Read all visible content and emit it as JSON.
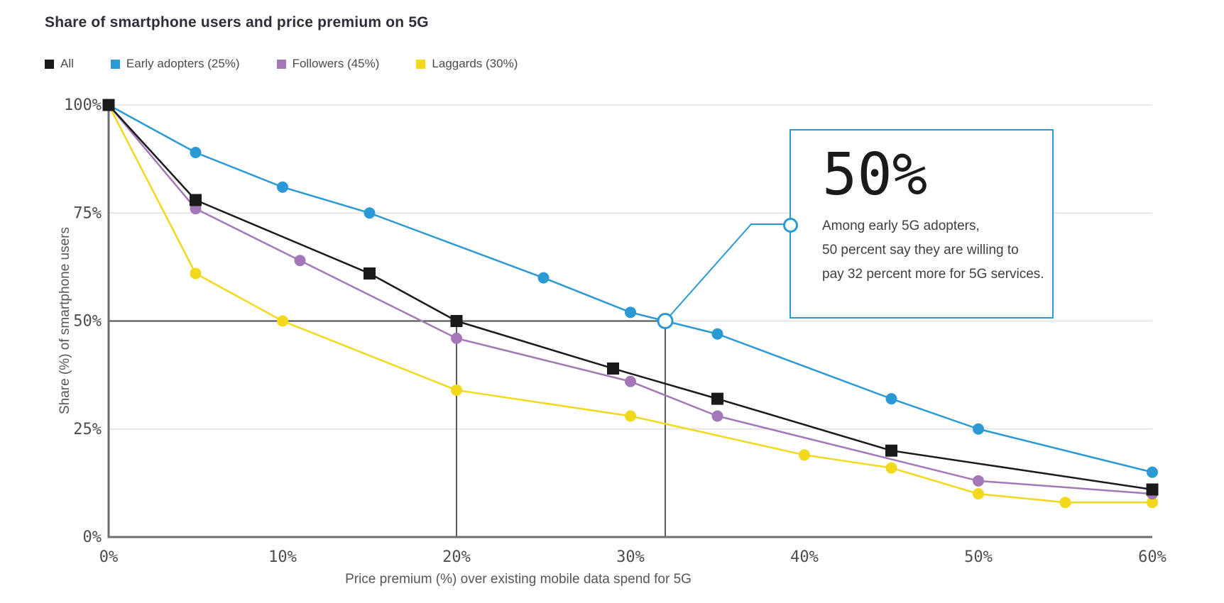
{
  "chart_data": {
    "type": "line",
    "title": "Share of smartphone users and price premium on 5G",
    "xlabel": "Price premium (%) over existing mobile data spend for 5G",
    "ylabel": "Share (%) of smartphone users",
    "xlim": [
      0,
      60
    ],
    "ylim": [
      0,
      100
    ],
    "x_tick_values": [
      0,
      10,
      20,
      30,
      40,
      50,
      60
    ],
    "x_ticks": [
      "0%",
      "10%",
      "20%",
      "30%",
      "40%",
      "50%",
      "60%"
    ],
    "y_tick_values": [
      0,
      25,
      50,
      75,
      100
    ],
    "y_ticks": [
      "0%",
      "25%",
      "50%",
      "75%",
      "100%"
    ],
    "grid_y_values": [
      25,
      50,
      75,
      100
    ],
    "legend": [
      {
        "label": "All",
        "color": "#1a1a1a"
      },
      {
        "label": "Early adopters (25%)",
        "color": "#2b99d3"
      },
      {
        "label": "Followers (45%)",
        "color": "#a478b8"
      },
      {
        "label": "Laggards (30%)",
        "color": "#f2d91c"
      }
    ],
    "series": [
      {
        "name": "Laggards (30%)",
        "color": "#f2d91c",
        "marker": "circle",
        "points": [
          [
            0,
            100
          ],
          [
            5,
            61
          ],
          [
            10,
            50
          ],
          [
            20,
            34
          ],
          [
            30,
            28
          ],
          [
            40,
            19
          ],
          [
            45,
            16
          ],
          [
            50,
            10
          ],
          [
            55,
            8
          ],
          [
            60,
            8
          ]
        ]
      },
      {
        "name": "Followers (45%)",
        "color": "#a478b8",
        "marker": "circle",
        "points": [
          [
            0,
            100
          ],
          [
            5,
            76
          ],
          [
            11,
            64
          ],
          [
            20,
            46
          ],
          [
            30,
            36
          ],
          [
            35,
            28
          ],
          [
            50,
            13
          ],
          [
            60,
            10
          ]
        ]
      },
      {
        "name": "Early adopters (25%)",
        "color": "#2b99d3",
        "marker": "circle",
        "points": [
          [
            0,
            100
          ],
          [
            5,
            89
          ],
          [
            10,
            81
          ],
          [
            15,
            75
          ],
          [
            25,
            60
          ],
          [
            30,
            52
          ],
          [
            32,
            50
          ],
          [
            35,
            47
          ],
          [
            45,
            32
          ],
          [
            50,
            25
          ],
          [
            60,
            15
          ]
        ]
      },
      {
        "name": "All",
        "color": "#1a1a1a",
        "marker": "square",
        "points": [
          [
            0,
            100
          ],
          [
            5,
            78
          ],
          [
            15,
            61
          ],
          [
            20,
            50
          ],
          [
            29,
            39
          ],
          [
            35,
            32
          ],
          [
            45,
            20
          ],
          [
            60,
            11
          ]
        ]
      }
    ],
    "reference_lines": {
      "horizontal": [
        {
          "y": 50,
          "x_from": 0,
          "x_to": 32
        }
      ],
      "vertical": [
        {
          "x": 20,
          "y_from": 0,
          "y_to": 50
        },
        {
          "x": 32,
          "y_from": 0,
          "y_to": 50
        }
      ]
    },
    "annotation": {
      "headline": "50%",
      "lines": [
        "Among early 5G adopters,",
        "50 percent say they are willing to",
        "pay 32 percent more for 5G services."
      ],
      "point": [
        32,
        50
      ],
      "highlight_series": "Early adopters (25%)"
    },
    "style": {
      "grid_color": "#dcdcdc",
      "axis_color": "#6d6e71",
      "reference_color": "#4a4a4b",
      "accent_blue": "#2b99d3",
      "tick_text_color": "#4d4d4f"
    },
    "legend_position": "top-left",
    "grid": "horizontal-only"
  }
}
